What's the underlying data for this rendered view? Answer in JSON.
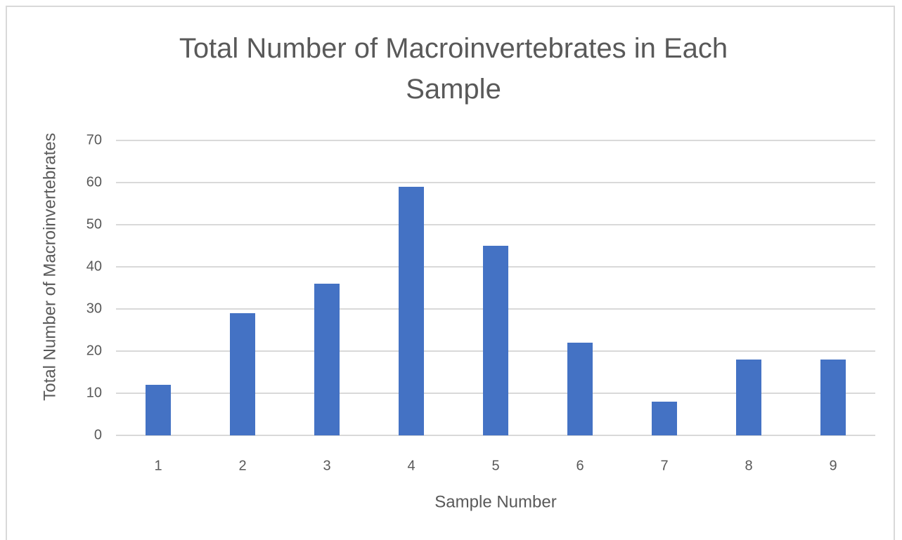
{
  "chart_data": {
    "type": "bar",
    "title": "Total Number of Macroinvertebrates in Each Sample",
    "x_label": "Sample Number",
    "y_label": "Total Number of Macroinvertebrates",
    "categories": [
      "1",
      "2",
      "3",
      "4",
      "5",
      "6",
      "7",
      "8",
      "9"
    ],
    "values": [
      12,
      29,
      36,
      59,
      45,
      22,
      8,
      18,
      18
    ],
    "color": "#4472c4",
    "ylim": [
      0,
      70
    ],
    "yticks": [
      0,
      10,
      20,
      30,
      40,
      50,
      60,
      70
    ],
    "grid": true
  }
}
